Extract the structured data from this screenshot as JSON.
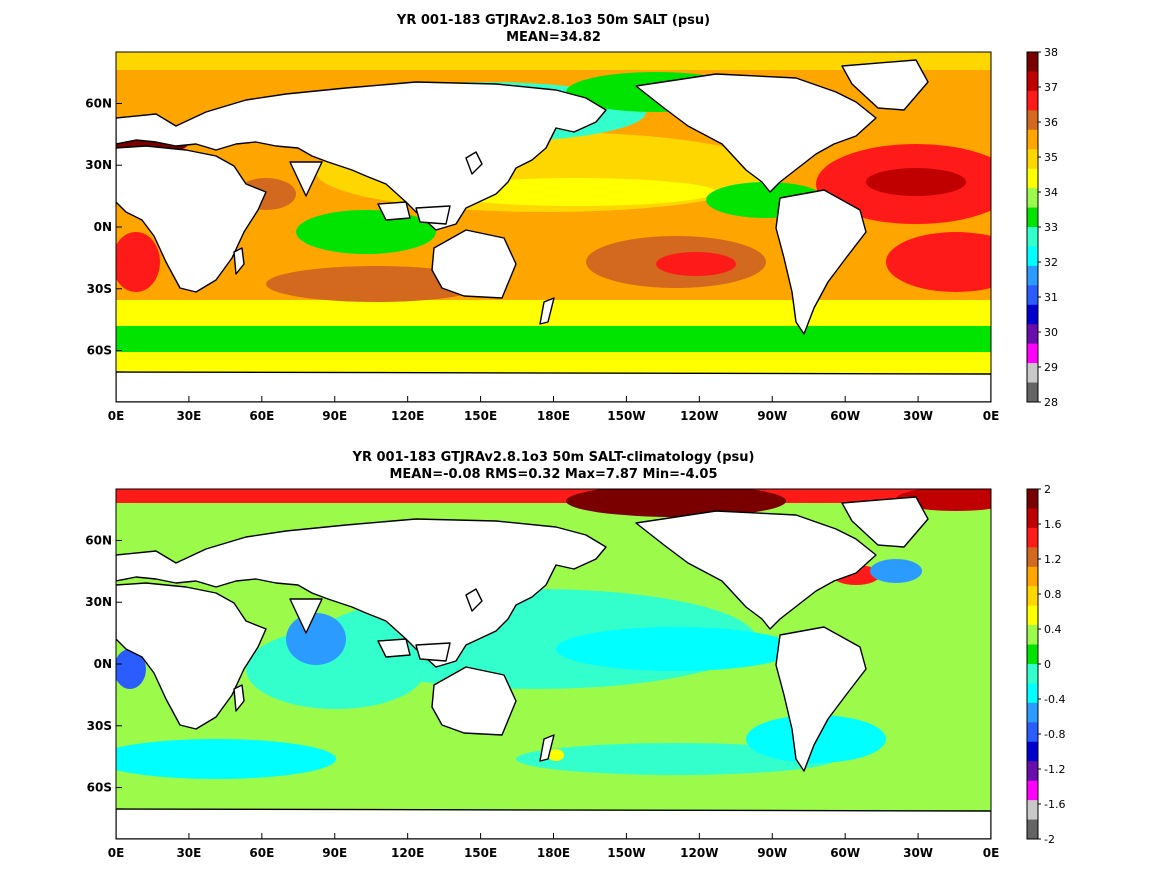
{
  "panels": [
    {
      "title_line1": "YR 001-183 GTJRAv2.8.1o3 50m SALT (psu)",
      "title_line2": "MEAN=34.82"
    },
    {
      "title_line1": "YR 001-183 GTJRAv2.8.1o3 50m SALT-climatology (psu)",
      "title_line2": "MEAN=-0.08   RMS=0.32   Max=7.87   Min=-4.05"
    }
  ],
  "x_ticks": [
    "0E",
    "30E",
    "60E",
    "90E",
    "120E",
    "150E",
    "180E",
    "150W",
    "120W",
    "90W",
    "60W",
    "30W",
    "0E"
  ],
  "y_ticks": [
    "60N",
    "30N",
    "0N",
    "30S",
    "60S"
  ],
  "colorbars": [
    {
      "labels": [
        "38",
        "37",
        "36",
        "35",
        "34",
        "33",
        "32",
        "31",
        "30",
        "29",
        "28"
      ],
      "colors": [
        "#7a0000",
        "#c00000",
        "#ff1a1a",
        "#d2691e",
        "#ffa500",
        "#ffd700",
        "#ffff00",
        "#9cfb4a",
        "#00e400",
        "#33ffcc",
        "#00ffff",
        "#2b9bff",
        "#2a5cff",
        "#0000cd",
        "#6a0dad",
        "#ff00ff",
        "#c8c8c8",
        "#646464"
      ]
    },
    {
      "labels": [
        "2",
        "1.6",
        "1.2",
        "0.8",
        "0.4",
        "0",
        "-0.4",
        "-0.8",
        "-1.2",
        "-1.6",
        "-2"
      ],
      "colors": [
        "#7a0000",
        "#c00000",
        "#ff1a1a",
        "#d2691e",
        "#ffa500",
        "#ffd700",
        "#ffff00",
        "#9cfb4a",
        "#00e400",
        "#33ffcc",
        "#00ffff",
        "#2b9bff",
        "#2a5cff",
        "#0000cd",
        "#6a0dad",
        "#ff00ff",
        "#c8c8c8",
        "#646464"
      ]
    }
  ]
}
